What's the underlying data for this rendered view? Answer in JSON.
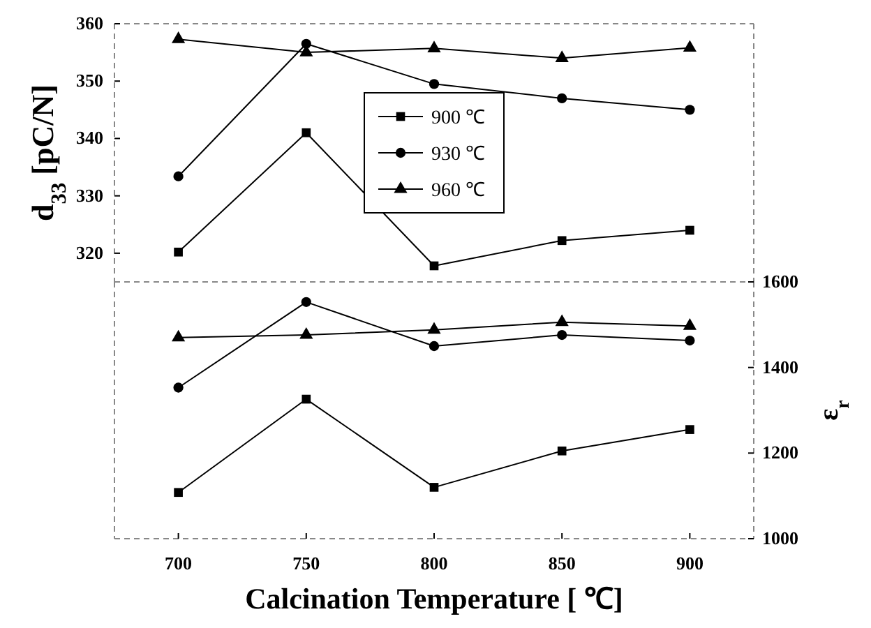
{
  "chart_data": [
    {
      "type": "line",
      "ylabel": "d$_{33}$ [pC/N]",
      "x": [
        700,
        750,
        800,
        850,
        900
      ],
      "xlim": [
        675,
        925
      ],
      "ylim": [
        315,
        360
      ],
      "yticks": [
        320,
        330,
        340,
        350,
        360
      ],
      "tick_labels": "y",
      "legend": "center",
      "line_style": "solid",
      "series": [
        {
          "name": "900 ℃",
          "color": "#000000",
          "marker": "square",
          "values": [
            320.2,
            341,
            317.8,
            322.2,
            324
          ]
        },
        {
          "name": "930 ℃",
          "color": "#000000",
          "marker": "circle",
          "values": [
            333.4,
            356.5,
            349.5,
            347,
            345
          ]
        },
        {
          "name": "960 ℃",
          "color": "#000000",
          "marker": "triangle",
          "values": [
            357.3,
            355,
            355.7,
            354,
            355.8
          ]
        }
      ]
    },
    {
      "type": "line",
      "xlabel": "Calcination Temperature [ ℃]",
      "y2label": "ε$_{r}$",
      "x": [
        700,
        750,
        800,
        850,
        900
      ],
      "xlim": [
        675,
        925
      ],
      "xticks": [
        700,
        750,
        800,
        850,
        900
      ],
      "y2lim": [
        1000,
        1600
      ],
      "y2ticks": [
        1000,
        1200,
        1400,
        1600
      ],
      "line_style": "solid",
      "series": [
        {
          "color": "#000000",
          "marker": "square",
          "axis": "y2",
          "values": [
            1108,
            1326,
            1120,
            1205,
            1255
          ]
        },
        {
          "color": "#000000",
          "marker": "circle",
          "axis": "y2",
          "values": [
            1353,
            1553,
            1450,
            1476,
            1463
          ]
        },
        {
          "color": "#000000",
          "marker": "triangle",
          "axis": "y2",
          "values": [
            1470,
            1476,
            1488,
            1506,
            1497
          ]
        }
      ]
    }
  ]
}
